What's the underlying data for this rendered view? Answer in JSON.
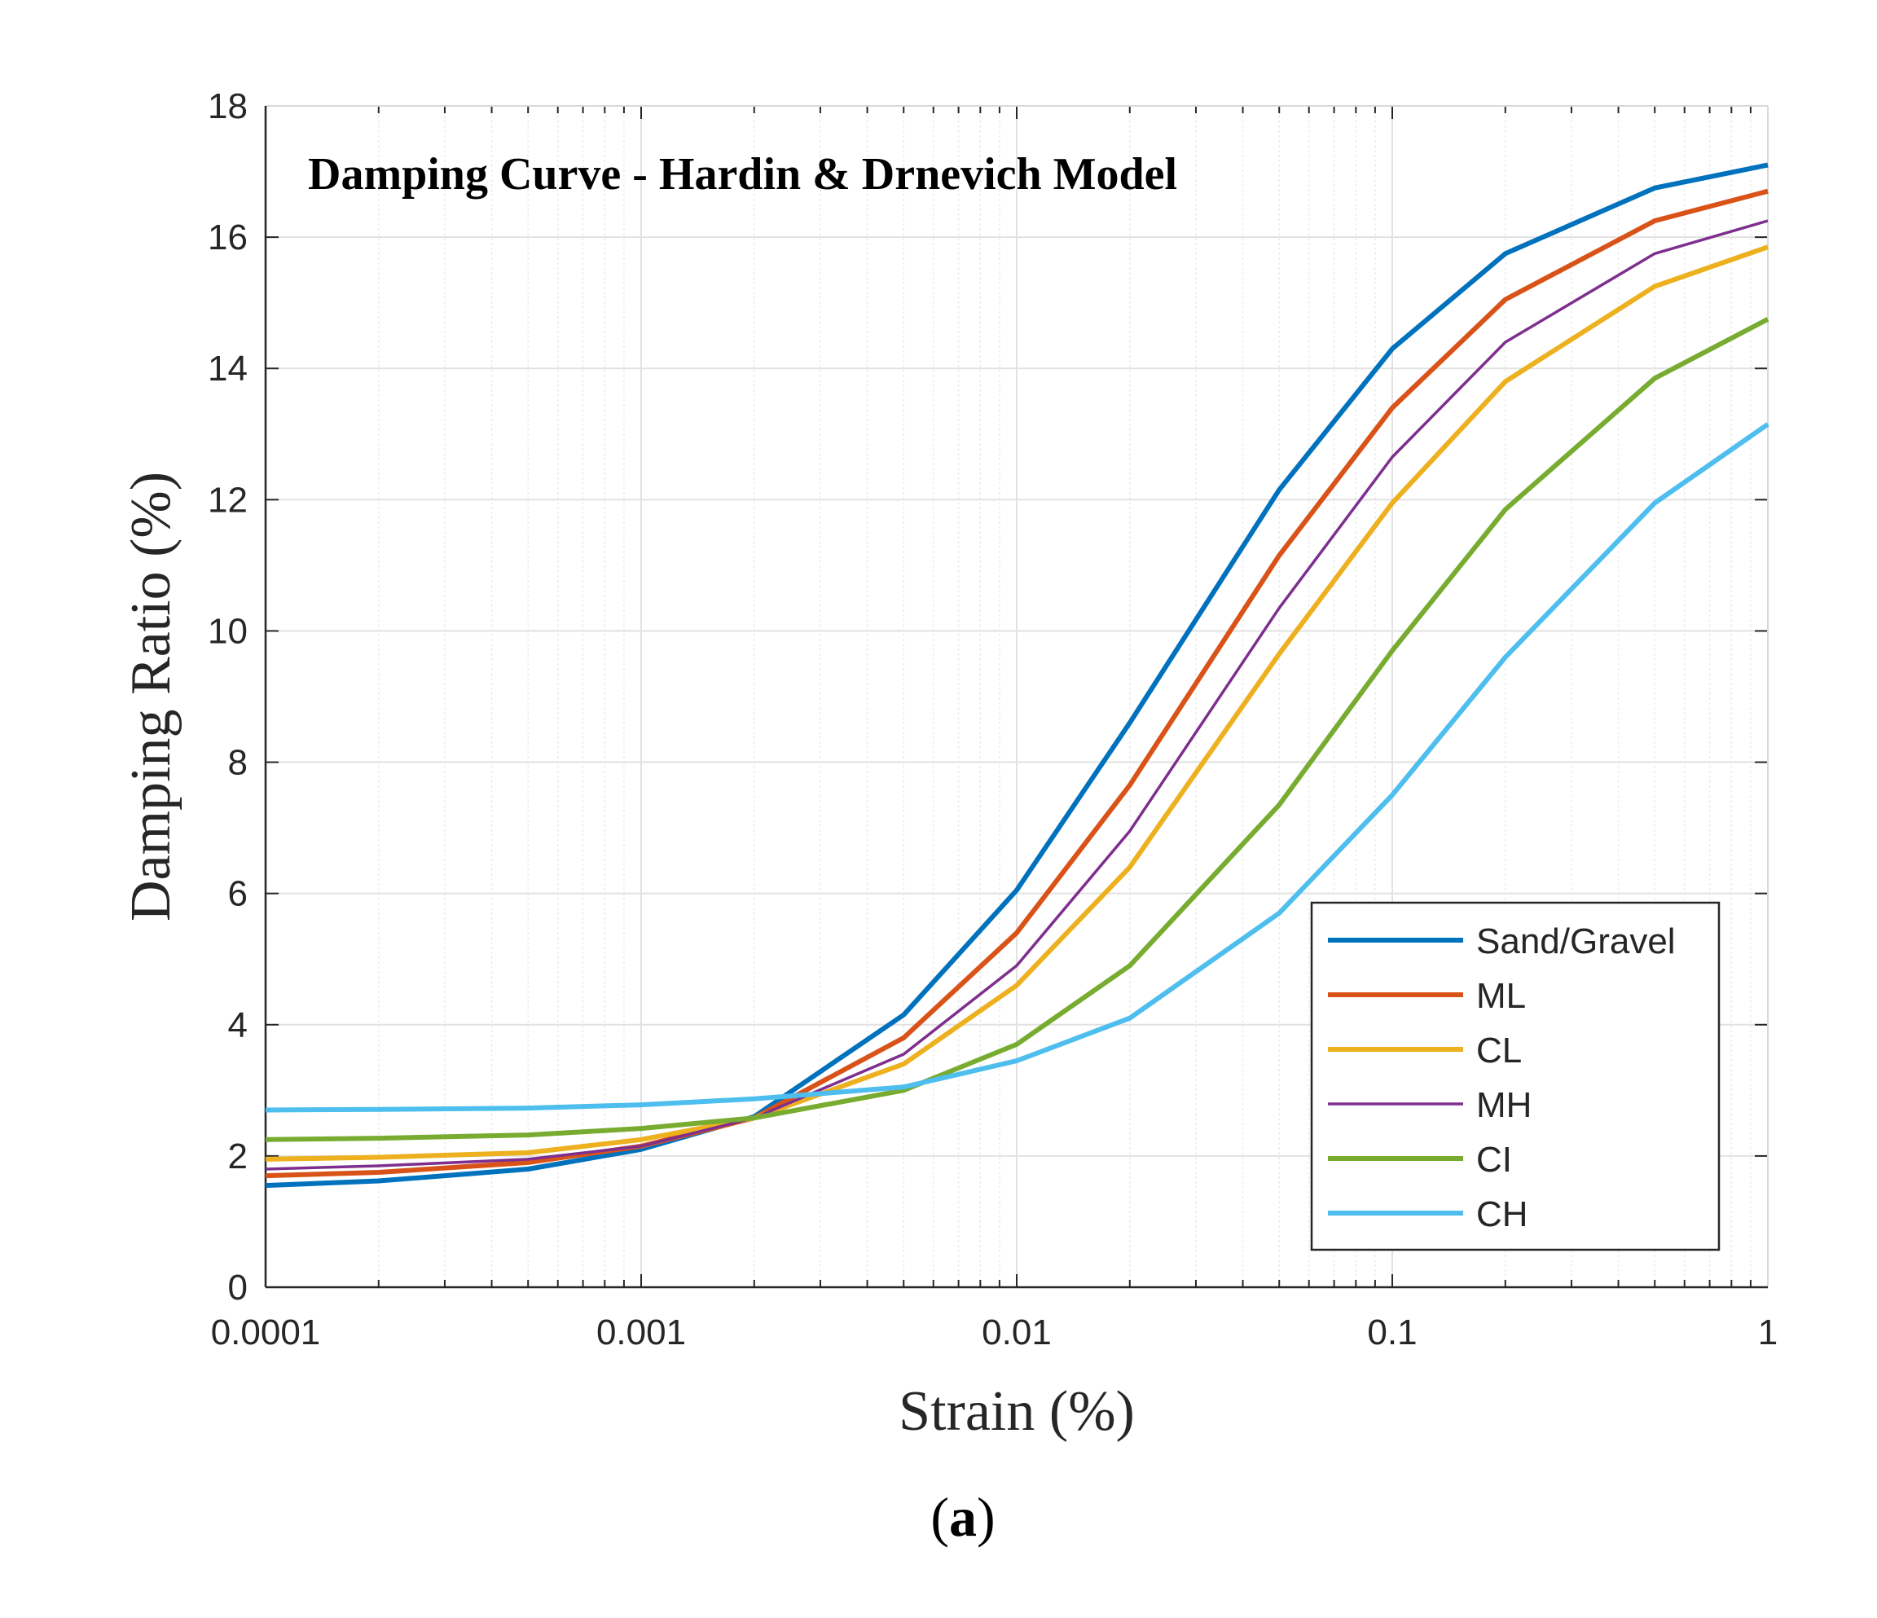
{
  "chart_data": {
    "type": "line",
    "title": "Damping Curve - Hardin & Drnevich Model",
    "xlabel": "Strain (%)",
    "ylabel": "Damping Ratio (%)",
    "xscale": "log",
    "xlim": [
      0.0001,
      1
    ],
    "ylim": [
      0,
      18
    ],
    "xticks": [
      0.0001,
      0.001,
      0.01,
      0.1,
      1
    ],
    "xtick_labels": [
      "0.0001",
      "0.001",
      "0.01",
      "0.1",
      "1"
    ],
    "yticks": [
      0,
      2,
      4,
      6,
      8,
      10,
      12,
      14,
      16,
      18
    ],
    "ytick_labels": [
      "0",
      "2",
      "4",
      "6",
      "8",
      "10",
      "12",
      "14",
      "16",
      "18"
    ],
    "grid": true,
    "legend_position": "bottom-right",
    "x": [
      0.0001,
      0.0002,
      0.0005,
      0.001,
      0.002,
      0.005,
      0.01,
      0.02,
      0.05,
      0.1,
      0.2,
      0.5,
      1
    ],
    "series": [
      {
        "name": "Sand/Gravel",
        "color": "#0072BD",
        "values": [
          1.55,
          1.62,
          1.8,
          2.1,
          2.6,
          4.15,
          6.05,
          8.6,
          12.15,
          14.3,
          15.75,
          16.75,
          17.1
        ]
      },
      {
        "name": "ML",
        "color": "#D95319",
        "values": [
          1.7,
          1.75,
          1.9,
          2.15,
          2.58,
          3.8,
          5.4,
          7.65,
          11.15,
          13.4,
          15.05,
          16.25,
          16.7
        ]
      },
      {
        "name": "CL",
        "color": "#EDB120",
        "values": [
          1.95,
          1.98,
          2.05,
          2.25,
          2.58,
          3.4,
          4.6,
          6.4,
          9.65,
          11.95,
          13.8,
          15.25,
          15.85
        ]
      },
      {
        "name": "MH",
        "color": "#7E2F8E",
        "values": [
          1.8,
          1.85,
          1.95,
          2.15,
          2.58,
          3.55,
          4.9,
          6.95,
          10.35,
          12.65,
          14.4,
          15.75,
          16.25
        ]
      },
      {
        "name": "CI",
        "color": "#77AC30",
        "values": [
          2.25,
          2.27,
          2.32,
          2.42,
          2.58,
          3.0,
          3.7,
          4.9,
          7.35,
          9.7,
          11.85,
          13.85,
          14.75
        ]
      },
      {
        "name": "CH",
        "color": "#4DBEEE",
        "values": [
          2.7,
          2.71,
          2.73,
          2.78,
          2.87,
          3.05,
          3.45,
          4.1,
          5.7,
          7.5,
          9.6,
          11.95,
          13.15
        ]
      }
    ]
  },
  "caption": {
    "open": "(",
    "letter": "a",
    "close": ")"
  }
}
